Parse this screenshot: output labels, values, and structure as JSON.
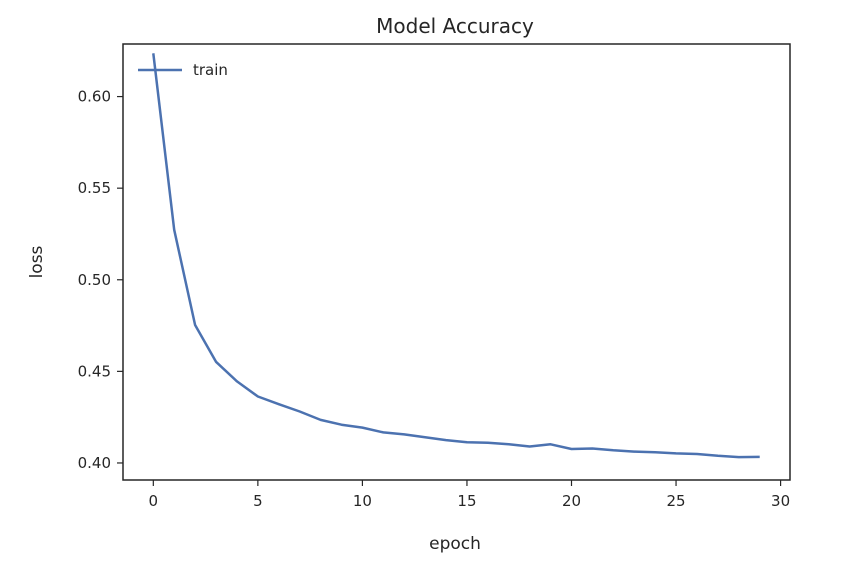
{
  "chart_data": {
    "type": "line",
    "title": "Model Accuracy",
    "xlabel": "epoch",
    "ylabel": "loss",
    "xlim": [
      -1.45,
      30.45
    ],
    "ylim": [
      0.3907,
      0.6287
    ],
    "xticks": [
      0,
      5,
      10,
      15,
      20,
      25,
      30
    ],
    "xtick_labels": [
      "0",
      "5",
      "10",
      "15",
      "20",
      "25",
      "30"
    ],
    "yticks": [
      0.4,
      0.45,
      0.5,
      0.55,
      0.6
    ],
    "ytick_labels": [
      "0.40",
      "0.45",
      "0.50",
      "0.55",
      "0.60"
    ],
    "grid": false,
    "legend_position": "top-left",
    "series": [
      {
        "name": "train",
        "color": "#4c72b0",
        "x": [
          0,
          1,
          2,
          3,
          4,
          5,
          6,
          7,
          8,
          9,
          10,
          11,
          12,
          13,
          14,
          15,
          16,
          17,
          18,
          19,
          20,
          21,
          22,
          23,
          24,
          25,
          26,
          27,
          28,
          29
        ],
        "y": [
          0.6236,
          0.5273,
          0.4753,
          0.4552,
          0.4445,
          0.4363,
          0.4321,
          0.4281,
          0.4235,
          0.4209,
          0.4193,
          0.4167,
          0.4156,
          0.414,
          0.4125,
          0.4113,
          0.411,
          0.4102,
          0.409,
          0.4102,
          0.4076,
          0.4079,
          0.4069,
          0.4062,
          0.4059,
          0.4052,
          0.4049,
          0.4039,
          0.4032,
          0.4033
        ]
      }
    ]
  }
}
